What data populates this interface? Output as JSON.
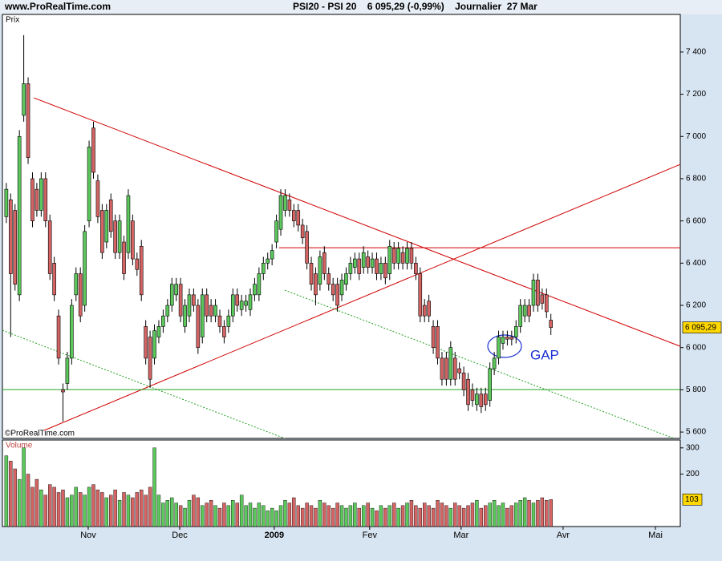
{
  "chart_data": {
    "type": "candlestick",
    "header_left": "www.ProRealTime.com",
    "header_center": "PSI20 - PSI 20    6 095,29 (-0,99%)    Journalier  27 Mar",
    "price_label": "Prix",
    "volume_label": "Volume",
    "copyright": "©ProRealTime.com",
    "annotation": "GAP",
    "annotation_color": "#1a2fd0",
    "up_color": "#5cc85c",
    "down_color": "#d46464",
    "xlim": [
      -0.9,
      154.7
    ],
    "xticks": [
      {
        "value": 18.8,
        "label": "Nov"
      },
      {
        "value": 39.8,
        "label": "Dec"
      },
      {
        "value": 61.5,
        "label": "2009"
      },
      {
        "value": 83.4,
        "label": "Fev"
      },
      {
        "value": 104.4,
        "label": "Mar"
      },
      {
        "value": 127.8,
        "label": "Avr"
      },
      {
        "value": 149,
        "label": "Mai"
      }
    ],
    "ylim": [
      5570,
      7578
    ],
    "yticks": [
      {
        "value": 5600,
        "label": "5 600"
      },
      {
        "value": 5800,
        "label": "5 800"
      },
      {
        "value": 6000,
        "label": "6 000"
      },
      {
        "value": 6200,
        "label": "6 200"
      },
      {
        "value": 6400,
        "label": "6 400"
      },
      {
        "value": 6600,
        "label": "6 600"
      },
      {
        "value": 6800,
        "label": "6 800"
      },
      {
        "value": 7000,
        "label": "7 000"
      },
      {
        "value": 7200,
        "label": "7 200"
      },
      {
        "value": 7400,
        "label": "7 400"
      }
    ],
    "volume_ylim": [
      0,
      330
    ],
    "volume_yticks": [
      200,
      300
    ],
    "open": [
      6620,
      6700,
      6650,
      6250,
      7100,
      7250,
      6800,
      6750,
      6650,
      6800,
      6600,
      6400,
      6150,
      5800,
      5830,
      5950,
      6250,
      6350,
      6200,
      6600,
      7040,
      6790,
      6650,
      6500,
      6700,
      6600,
      6450,
      6500,
      6450,
      6600,
      6420,
      6480,
      6100,
      6050,
      5950,
      6050,
      6100,
      6150,
      6200,
      6250,
      6300,
      6100,
      6150,
      6250,
      6200,
      6050,
      6250,
      6200,
      6150,
      6150,
      6100,
      6100,
      6150,
      6250,
      6180,
      6200,
      6180,
      6250,
      6250,
      6350,
      6400,
      6420,
      6500,
      6560,
      6650,
      6700,
      6650,
      6650,
      6580,
      6550,
      6400,
      6350,
      6300,
      6450,
      6350,
      6300,
      6300,
      6250,
      6300,
      6350,
      6380,
      6420,
      6380,
      6430,
      6380,
      6420,
      6350,
      6400,
      6350,
      6470,
      6400,
      6450,
      6400,
      6470,
      6400,
      6350,
      6200,
      6220,
      6100,
      6100,
      5950,
      5950,
      5850,
      5950,
      5900,
      5880,
      5850,
      5800,
      5730,
      5780,
      5780,
      5750,
      5900,
      5950,
      6020,
      6050,
      6050,
      6050,
      6100,
      6150,
      6200,
      6200,
      6320,
      6250,
      6250,
      6130
    ],
    "high": [
      6780,
      6730,
      6680,
      7030,
      7480,
      7280,
      6830,
      6780,
      6830,
      6830,
      6630,
      6430,
      6180,
      5830,
      5980,
      6230,
      6380,
      6380,
      6580,
      6980,
      7070,
      6820,
      6680,
      6680,
      6730,
      6630,
      6630,
      6530,
      6750,
      6630,
      6450,
      6510,
      6130,
      6080,
      6110,
      6130,
      6180,
      6230,
      6330,
      6330,
      6330,
      6230,
      6280,
      6280,
      6230,
      6280,
      6280,
      6230,
      6230,
      6180,
      6130,
      6180,
      6280,
      6280,
      6250,
      6250,
      6280,
      6330,
      6380,
      6430,
      6450,
      6490,
      6630,
      6750,
      6750,
      6730,
      6680,
      6680,
      6610,
      6580,
      6430,
      6380,
      6460,
      6480,
      6380,
      6330,
      6330,
      6350,
      6380,
      6430,
      6450,
      6450,
      6480,
      6460,
      6450,
      6450,
      6430,
      6430,
      6510,
      6500,
      6500,
      6480,
      6500,
      6500,
      6430,
      6380,
      6230,
      6250,
      6130,
      6130,
      5980,
      5980,
      6030,
      5980,
      5930,
      5910,
      5880,
      5830,
      5810,
      5810,
      5810,
      5930,
      5980,
      6080,
      6080,
      6080,
      6080,
      6130,
      6230,
      6230,
      6230,
      6350,
      6350,
      6280,
      6280,
      6160
    ],
    "low": [
      6590,
      6050,
      6270,
      6220,
      7070,
      6870,
      6570,
      6620,
      6620,
      6570,
      6320,
      6220,
      5920,
      5650,
      5800,
      5920,
      6220,
      6120,
      6170,
      6570,
      6800,
      6590,
      6420,
      6470,
      6520,
      6420,
      6420,
      6320,
      6420,
      6390,
      6340,
      6220,
      5920,
      5810,
      5920,
      6020,
      6070,
      6120,
      6170,
      6220,
      6120,
      6070,
      6120,
      6170,
      5970,
      6020,
      6120,
      6120,
      6120,
      6070,
      6020,
      6070,
      6120,
      6170,
      6150,
      6170,
      6150,
      6220,
      6220,
      6320,
      6370,
      6390,
      6470,
      6530,
      6620,
      6620,
      6570,
      6550,
      6490,
      6370,
      6270,
      6200,
      6270,
      6320,
      6270,
      6220,
      6170,
      6220,
      6270,
      6320,
      6350,
      6320,
      6350,
      6350,
      6350,
      6320,
      6320,
      6300,
      6320,
      6370,
      6370,
      6370,
      6370,
      6370,
      6320,
      6120,
      6120,
      6120,
      5970,
      5920,
      5820,
      5820,
      5820,
      5820,
      5850,
      5770,
      5700,
      5720,
      5700,
      5690,
      5700,
      5720,
      5870,
      5920,
      5990,
      6010,
      6010,
      6020,
      6070,
      6120,
      6120,
      6170,
      6170,
      6180,
      6140,
      6060
    ],
    "close": [
      6750,
      6350,
      6300,
      7000,
      7250,
      6900,
      6600,
      6650,
      6800,
      6600,
      6350,
      6250,
      5950,
      5790,
      5950,
      6200,
      6350,
      6150,
      6550,
      6950,
      6830,
      6620,
      6450,
      6650,
      6550,
      6450,
      6600,
      6350,
      6720,
      6420,
      6370,
      6250,
      5950,
      5850,
      6080,
      6100,
      6150,
      6200,
      6300,
      6300,
      6150,
      6200,
      6250,
      6200,
      6000,
      6250,
      6150,
      6150,
      6200,
      6100,
      6050,
      6150,
      6250,
      6200,
      6220,
      6220,
      6250,
      6300,
      6350,
      6400,
      6420,
      6460,
      6600,
      6720,
      6720,
      6650,
      6600,
      6580,
      6520,
      6400,
      6300,
      6250,
      6430,
      6350,
      6300,
      6250,
      6200,
      6320,
      6350,
      6400,
      6420,
      6350,
      6450,
      6380,
      6420,
      6350,
      6400,
      6330,
      6480,
      6400,
      6470,
      6400,
      6470,
      6400,
      6350,
      6150,
      6150,
      6150,
      6000,
      5950,
      5850,
      5850,
      6000,
      5850,
      5880,
      5800,
      5730,
      5750,
      5780,
      5720,
      5730,
      5900,
      5950,
      6050,
      6050,
      6040,
      6040,
      6100,
      6200,
      6200,
      6150,
      6320,
      6200,
      6210,
      6170,
      6095.29
    ],
    "close_labels": {
      "125": "6 095,29"
    },
    "volume": [
      270,
      250,
      220,
      180,
      300,
      200,
      150,
      180,
      140,
      120,
      160,
      150,
      130,
      140,
      110,
      120,
      150,
      130,
      120,
      150,
      160,
      140,
      130,
      110,
      120,
      140,
      100,
      130,
      120,
      110,
      130,
      140,
      120,
      150,
      300,
      120,
      90,
      100,
      110,
      90,
      80,
      70,
      100,
      120,
      110,
      80,
      90,
      100,
      80,
      70,
      90,
      80,
      100,
      90,
      120,
      80,
      90,
      70,
      90,
      80,
      60,
      70,
      60,
      80,
      100,
      90,
      110,
      80,
      70,
      90,
      80,
      70,
      100,
      90,
      80,
      70,
      90,
      80,
      70,
      80,
      90,
      70,
      80,
      90,
      70,
      60,
      80,
      70,
      80,
      90,
      70,
      80,
      90,
      100,
      80,
      70,
      90,
      80,
      70,
      100,
      90,
      80,
      70,
      90,
      80,
      70,
      80,
      90,
      100,
      70,
      80,
      90,
      100,
      80,
      90,
      70,
      80,
      90,
      100,
      110,
      100,
      90,
      100,
      110,
      100,
      103
    ],
    "lines": [
      {
        "x": [
          6.3,
          154.7
        ],
        "y": [
          7183,
          6006
        ],
        "color": "#d00000",
        "style": "solid"
      },
      {
        "x": [
          8.7,
          154.7
        ],
        "y": [
          5608,
          6868
        ],
        "color": "#d00000",
        "style": "solid"
      },
      {
        "x": [
          62.6,
          154.7
        ],
        "y": [
          6473,
          6473
        ],
        "color": "#d00000",
        "style": "solid"
      },
      {
        "x": [
          -0.9,
          154.7
        ],
        "y": [
          5801,
          5801
        ],
        "color": "#22a022",
        "style": "solid"
      },
      {
        "x": [
          -0.9,
          63.9
        ],
        "y": [
          6082,
          5570
        ],
        "color": "#22a022",
        "style": "dotted"
      },
      {
        "x": [
          63.9,
          153.2
        ],
        "y": [
          6272,
          5570
        ],
        "color": "#22a022",
        "style": "dotted"
      }
    ]
  }
}
